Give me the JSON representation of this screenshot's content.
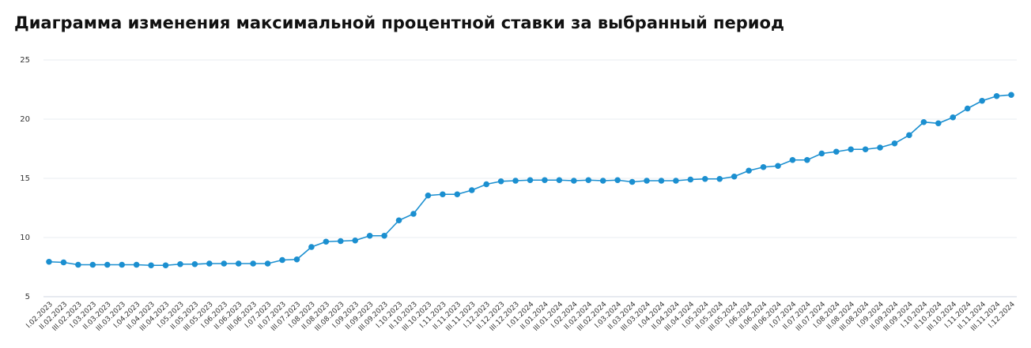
{
  "chart_data": {
    "type": "line",
    "title": "Диаграмма изменения максимальной процентной ставки за выбранный период",
    "categories": [
      "I.02.2023",
      "II.02.2023",
      "III.02.2023",
      "I.03.2023",
      "II.03.2023",
      "III.03.2023",
      "I.04.2023",
      "II.04.2023",
      "III.04.2023",
      "I.05.2023",
      "II.05.2023",
      "III.05.2023",
      "I.06.2023",
      "II.06.2023",
      "III.06.2023",
      "I.07.2023",
      "II.07.2023",
      "III.07.2023",
      "I.08.2023",
      "II.08.2023",
      "III.08.2023",
      "I.09.2023",
      "II.09.2023",
      "III.09.2023",
      "I.10.2023",
      "II.10.2023",
      "III.10.2023",
      "I.11.2023",
      "II.11.2023",
      "III.11.2023",
      "I.12.2023",
      "II.12.2023",
      "III.12.2023",
      "I.01.2024",
      "II.01.2024",
      "III.01.2024",
      "I.02.2024",
      "II.02.2024",
      "III.02.2024",
      "I.03.2024",
      "II.03.2024",
      "III.03.2024",
      "I.04.2024",
      "II.04.2024",
      "III.04.2024",
      "I.05.2024",
      "II.05.2024",
      "III.05.2024",
      "I.06.2024",
      "II.06.2024",
      "III.06.2024",
      "I.07.2024",
      "II.07.2024",
      "III.07.2024",
      "I.08.2024",
      "II.08.2024",
      "III.08.2024",
      "I.09.2024",
      "II.09.2024",
      "III.09.2024",
      "I.10.2024",
      "II.10.2024",
      "III.10.2024",
      "I.11.2024",
      "II.11.2024",
      "III.11.2024",
      "I.12.2024"
    ],
    "values": [
      7.95,
      7.9,
      7.7,
      7.7,
      7.7,
      7.7,
      7.7,
      7.65,
      7.65,
      7.75,
      7.75,
      7.8,
      7.8,
      7.8,
      7.8,
      7.8,
      8.1,
      8.15,
      9.2,
      9.65,
      9.7,
      9.75,
      10.15,
      10.15,
      11.45,
      12.0,
      13.55,
      13.65,
      13.65,
      14.0,
      14.5,
      14.75,
      14.8,
      14.85,
      14.85,
      14.85,
      14.8,
      14.85,
      14.8,
      14.85,
      14.7,
      14.8,
      14.8,
      14.8,
      14.9,
      14.95,
      14.95,
      15.15,
      15.65,
      15.95,
      16.05,
      16.55,
      16.55,
      17.1,
      17.25,
      17.45,
      17.45,
      17.6,
      17.95,
      18.65,
      19.75,
      19.65,
      20.15,
      20.9,
      21.55,
      21.95,
      22.05
    ],
    "color": "#1b8fd0",
    "ylim": [
      5,
      25
    ],
    "yticks": [
      5,
      10,
      15,
      20,
      25
    ],
    "grid": true
  }
}
